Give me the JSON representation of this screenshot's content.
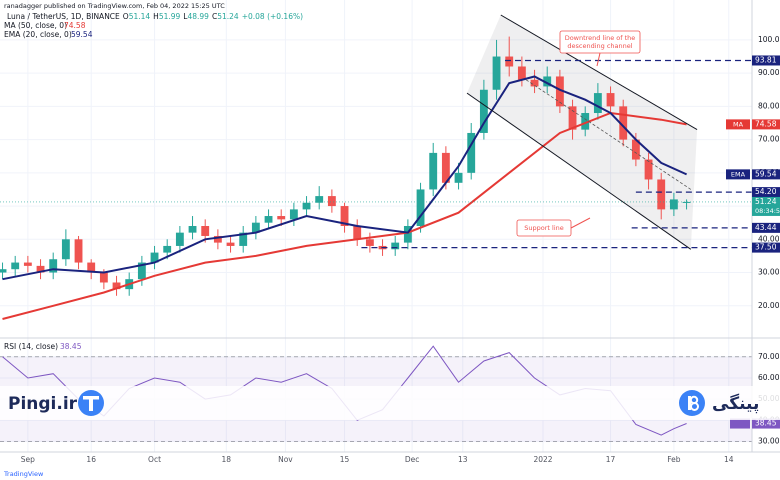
{
  "chart_data": {
    "type": "candlestick",
    "publisher": "ranadagger published on TradingView.com, Feb 04, 2022 15:25 UTC",
    "title": "Luna / TetherUS, 1D, BINANCE",
    "ohlc_labels": [
      "O",
      "H",
      "L",
      "C"
    ],
    "change": "+0.08 (+0.16%)",
    "colors": {
      "up": "#26a69a",
      "down": "#ef5350"
    },
    "x": [
      -6,
      -3,
      0,
      3,
      6,
      9,
      12,
      15,
      18,
      21,
      24,
      27,
      30,
      33,
      36,
      39,
      42,
      45,
      48,
      51,
      54,
      57,
      60,
      63,
      66,
      69,
      72,
      75,
      78,
      81,
      84,
      87,
      90,
      93,
      96,
      99,
      102,
      105,
      108,
      111,
      114,
      117,
      120,
      123,
      126,
      129,
      132,
      135,
      138,
      141,
      144,
      147,
      150,
      153,
      156
    ],
    "open": [
      30,
      31,
      33,
      32,
      30,
      34,
      40,
      33,
      30,
      27,
      25,
      28,
      33,
      36,
      38,
      42,
      44,
      41,
      39,
      38,
      42,
      45,
      47,
      46,
      49,
      51,
      53,
      50,
      44,
      40,
      38,
      37,
      39,
      44,
      55,
      66,
      57,
      60,
      72,
      85,
      95,
      92,
      88,
      86,
      89,
      80,
      73,
      78,
      84,
      80,
      70,
      64,
      58,
      49,
      51.14
    ],
    "high": [
      33,
      35,
      35,
      34,
      36,
      43,
      41,
      34,
      31,
      29,
      30,
      35,
      38,
      40,
      44,
      47,
      46,
      43,
      41,
      44,
      47,
      49,
      49,
      51,
      53,
      56,
      55,
      51,
      46,
      42,
      40,
      41,
      46,
      57,
      69,
      68,
      63,
      75,
      88,
      100,
      101,
      95,
      91,
      92,
      91,
      82,
      80,
      87,
      86,
      82,
      72,
      66,
      60,
      54,
      51.99
    ],
    "low": [
      28,
      29,
      30,
      28,
      28,
      32,
      31,
      28,
      25,
      23,
      23,
      26,
      31,
      34,
      36,
      40,
      39,
      37,
      36,
      36,
      40,
      43,
      44,
      44,
      47,
      49,
      48,
      42,
      38,
      36,
      35,
      35,
      37,
      42,
      53,
      55,
      55,
      58,
      70,
      82,
      89,
      86,
      84,
      84,
      78,
      70,
      71,
      76,
      78,
      68,
      62,
      55,
      46,
      47,
      48.99
    ],
    "close": [
      31,
      33,
      32,
      30,
      34,
      40,
      33,
      30,
      27,
      25,
      28,
      33,
      36,
      38,
      42,
      44,
      41,
      39,
      38,
      42,
      45,
      47,
      46,
      49,
      51,
      53,
      50,
      44,
      40,
      38,
      37,
      39,
      44,
      55,
      66,
      57,
      60,
      72,
      85,
      95,
      92,
      88,
      86,
      89,
      80,
      73,
      78,
      84,
      80,
      70,
      64,
      58,
      49,
      52,
      51.24
    ],
    "xlim": [
      -6.6,
      171.5
    ],
    "xticks": [
      {
        "value": 0,
        "label": "Sep"
      },
      {
        "value": 15,
        "label": "16"
      },
      {
        "value": 30,
        "label": "Oct"
      },
      {
        "value": 47,
        "label": "18"
      },
      {
        "value": 61,
        "label": "Nov"
      },
      {
        "value": 75,
        "label": "15"
      },
      {
        "value": 91,
        "label": "Dec"
      },
      {
        "value": 103,
        "label": "13"
      },
      {
        "value": 122,
        "label": "2022"
      },
      {
        "value": 138,
        "label": "17"
      },
      {
        "value": 153,
        "label": "Feb"
      },
      {
        "value": 166,
        "label": "14"
      }
    ],
    "ylim": [
      11.2,
      109
    ],
    "yticks": [
      {
        "value": 20,
        "label": "20.00"
      },
      {
        "value": 30,
        "label": "30.00"
      },
      {
        "value": 40,
        "label": "40.00"
      },
      {
        "value": 50,
        "label": "50.00"
      },
      {
        "value": 60,
        "label": "60.00"
      },
      {
        "value": 70,
        "label": "70.00"
      },
      {
        "value": 80,
        "label": "80.00"
      },
      {
        "value": 90,
        "label": "90.00"
      },
      {
        "value": 100,
        "label": "100.00"
      }
    ],
    "grid": true,
    "indicators": [
      {
        "name": "MA (50, close, 0)",
        "badge": "MA",
        "color": "#e53935",
        "x": [
          -6,
          6,
          18,
          30,
          42,
          54,
          66,
          78,
          90,
          102,
          114,
          126,
          138,
          150,
          156
        ],
        "values": [
          16,
          20,
          24,
          29,
          33,
          35,
          38,
          40,
          42,
          48,
          60,
          72,
          78,
          76,
          74.58
        ]
      },
      {
        "name": "EMA (20, close, 0)",
        "badge": "EMA",
        "color": "#1a237e",
        "x": [
          -6,
          6,
          18,
          30,
          42,
          54,
          66,
          78,
          90,
          96,
          102,
          108,
          114,
          120,
          126,
          132,
          138,
          144,
          150,
          156
        ],
        "values": [
          28,
          31,
          30,
          33,
          40,
          42,
          47,
          44,
          42,
          52,
          62,
          75,
          87,
          89,
          85,
          82,
          78,
          70,
          63,
          59.54
        ]
      }
    ],
    "levels": [
      {
        "value": 93.81,
        "label": "93.81",
        "x_start": 113
      },
      {
        "value": 54.2,
        "label": "54.20",
        "x_start": 144
      },
      {
        "value": 43.44,
        "label": "43.44",
        "x_start": 143
      },
      {
        "value": 37.5,
        "label": "37.50",
        "x_start": 79
      }
    ],
    "trendlines": [
      {
        "x": [
          112,
          158.5
        ],
        "values": [
          107.5,
          73
        ]
      },
      {
        "x": [
          104,
          157
        ],
        "values": [
          84,
          37
        ]
      },
      {
        "x": [
          118,
          157
        ],
        "values": [
          88,
          55
        ]
      }
    ],
    "annotations": [
      {
        "text": "Downtrend line of the"
      },
      {
        "text": "descending channel"
      },
      {
        "text": "Support line"
      }
    ],
    "countdown": "08:34:5",
    "rsi": {
      "name": "RSI (14, close)",
      "color": "#7e57c2",
      "x": [
        -6,
        0,
        6,
        12,
        18,
        24,
        30,
        36,
        42,
        48,
        54,
        60,
        66,
        72,
        78,
        84,
        90,
        96,
        102,
        108,
        114,
        120,
        126,
        132,
        138,
        144,
        150,
        153,
        156
      ],
      "values": [
        70,
        60,
        62,
        50,
        42,
        55,
        60,
        58,
        50,
        52,
        60,
        58,
        62,
        55,
        40,
        45,
        60,
        75,
        58,
        68,
        72,
        60,
        52,
        55,
        54,
        38,
        33,
        36,
        38.45
      ],
      "ylim": [
        25,
        77
      ],
      "yticks": [
        {
          "value": 30,
          "label": "30.00"
        },
        {
          "value": 40,
          "label": "40.00"
        },
        {
          "value": 50,
          "label": "50.00"
        },
        {
          "value": 60,
          "label": "60.00"
        },
        {
          "value": 70,
          "label": "70.00"
        }
      ],
      "bands": [
        30,
        70
      ]
    },
    "watermark": {
      "left": "Pingi.ir",
      "right": "پینگی"
    },
    "footer": "TradingView"
  }
}
